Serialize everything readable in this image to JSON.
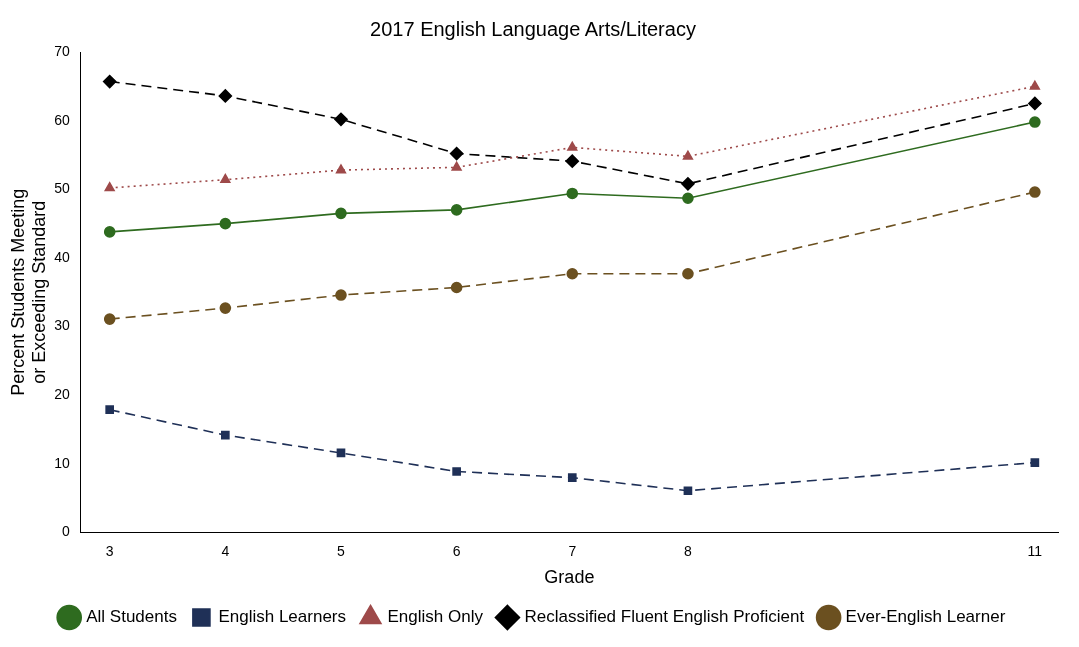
{
  "chart_data": {
    "type": "line",
    "title": "2017 English Language Arts/Literacy",
    "xlabel": "Grade",
    "ylabel": "Percent Students Meeting\nor Exceeding Standard",
    "x": [
      3,
      4,
      5,
      6,
      7,
      8,
      11
    ],
    "xlim": [
      2.75,
      11.2
    ],
    "xticks": [
      3,
      4,
      5,
      6,
      7,
      8,
      11
    ],
    "ylim": [
      0,
      70
    ],
    "yticks": [
      0,
      10,
      20,
      30,
      40,
      50,
      60,
      70
    ],
    "grid": false,
    "legend": "bottom",
    "series": [
      {
        "name": "All Students",
        "color": "#2e6b1f",
        "marker": "circle",
        "line_style": "solid",
        "values": [
          43.8,
          45.0,
          46.5,
          47.0,
          49.4,
          48.7,
          59.8
        ]
      },
      {
        "name": "English Learners",
        "color": "#1f3057",
        "marker": "square",
        "line_style": "dashed",
        "values": [
          17.9,
          14.2,
          11.6,
          8.9,
          8.0,
          6.1,
          10.2
        ]
      },
      {
        "name": "English Only",
        "color": "#9e4a4a",
        "marker": "triangle",
        "line_style": "dotted",
        "values": [
          50.2,
          51.4,
          52.8,
          53.2,
          56.1,
          54.8,
          65.0
        ]
      },
      {
        "name": "Reclassified Fluent English Proficient",
        "color": "#000000",
        "marker": "diamond",
        "line_style": "dashed",
        "values": [
          65.7,
          63.6,
          60.2,
          55.2,
          54.1,
          50.8,
          62.5
        ]
      },
      {
        "name": "Ever-English Learner",
        "color": "#6b5020",
        "marker": "circle",
        "line_style": "dashed",
        "values": [
          31.1,
          32.7,
          34.6,
          35.7,
          37.7,
          37.7,
          49.6
        ]
      }
    ]
  }
}
